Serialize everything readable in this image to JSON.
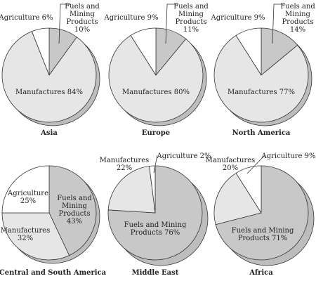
{
  "colors": {
    "fuels": "#c8c8c8",
    "manufactures": "#e6e6e6",
    "agriculture": "#ffffff",
    "shadow": "#bdbdbd",
    "outline": "#333333"
  },
  "chart_data": {
    "type": "pie",
    "categories": [
      "Fuels and Mining Products",
      "Manufactures",
      "Agriculture"
    ],
    "charts": [
      {
        "region": "Asia",
        "values": [
          10,
          84,
          6
        ],
        "labels": [
          "Fuels and\nMining\nProducts\n10%",
          "Manufactures 84%",
          "Agriculture 6%"
        ]
      },
      {
        "region": "Europe",
        "values": [
          11,
          80,
          9
        ],
        "labels": [
          "Fuels and\nMining\nProducts\n11%",
          "Manufactures 80%",
          "Agriculture 9%"
        ]
      },
      {
        "region": "North America",
        "values": [
          14,
          77,
          9
        ],
        "labels": [
          "Fuels and\nMining\nProducts\n14%",
          "Manufactures 77%",
          "Agriculture 9%"
        ]
      },
      {
        "region": "Central and South America",
        "values": [
          43,
          32,
          25
        ],
        "labels": [
          "Fuels and\nMining\nProducts\n43%",
          "Manufactures\n32%",
          "Agriculture\n25%"
        ]
      },
      {
        "region": "Middle East",
        "values": [
          76,
          22,
          2
        ],
        "labels": [
          "Fuels and Mining\nProducts 76%",
          "Manufactures\n22%",
          "Agriculture 2%"
        ]
      },
      {
        "region": "Africa",
        "values": [
          71,
          20,
          9
        ],
        "labels": [
          "Fuels and Mining\nProducts 71%",
          "Manufactures\n20%",
          "Agriculture 9%"
        ]
      }
    ]
  }
}
